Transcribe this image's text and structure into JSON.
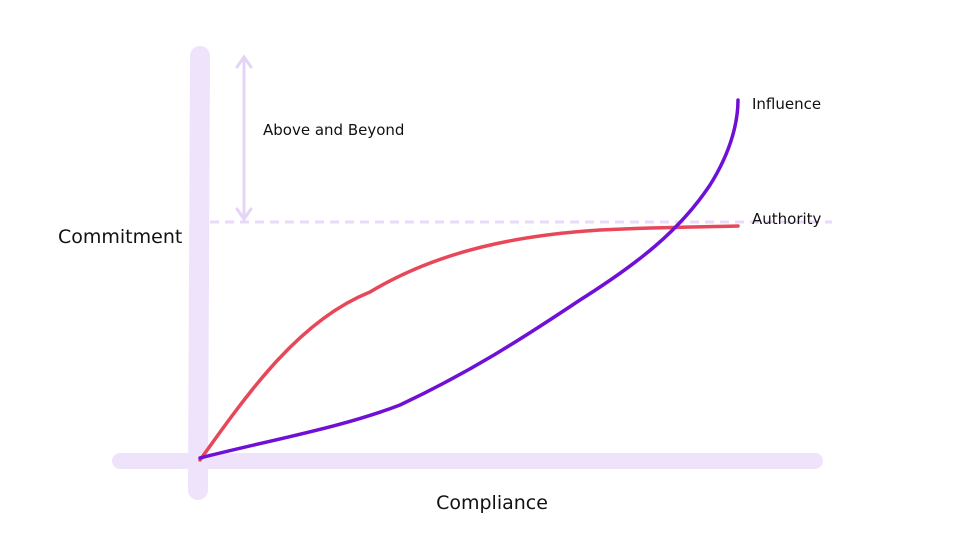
{
  "axes": {
    "y_label": "Commitment",
    "x_label": "Compliance"
  },
  "annotation": "Above and Beyond",
  "curves": [
    {
      "label": "Influence"
    },
    {
      "label": "Authority"
    }
  ]
}
